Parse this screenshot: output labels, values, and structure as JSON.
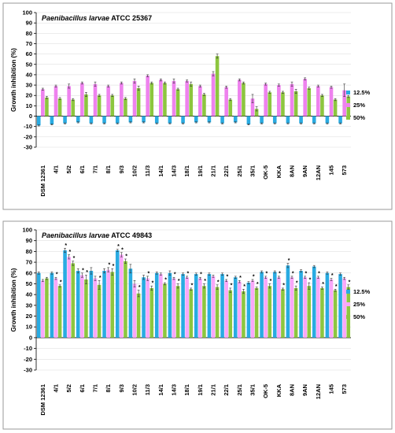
{
  "chart_data": [
    {
      "type": "bar",
      "title_species": "Paenibacillus larvae",
      "title_strain": "ATCC 25367",
      "ylabel": "Growth inhibition (%)",
      "xlabel": "",
      "ylim": [
        -30,
        100
      ],
      "yticks": [
        -30,
        -20,
        -10,
        0,
        10,
        20,
        30,
        40,
        50,
        60,
        70,
        80,
        90,
        100
      ],
      "grid": true,
      "legend_position": "right",
      "categories": [
        "DSM 12361",
        "4/1",
        "5/2",
        "6/1",
        "7/1",
        "8/1",
        "9/3",
        "10/2",
        "11/3",
        "14/1",
        "14/3",
        "18/1",
        "19/1",
        "21/1",
        "22/1",
        "25/1",
        "35/1",
        "OK-5",
        "KKA",
        "8AN",
        "9AN",
        "12AN",
        "145",
        "573"
      ],
      "series": [
        {
          "name": "12.5%",
          "color": "#29ABE2",
          "values": [
            -9,
            -8,
            -7,
            -6,
            -7,
            -7,
            -7,
            -6,
            -6,
            -7,
            -7,
            -7,
            -6,
            -6,
            -7,
            -6,
            -8,
            -7,
            -7,
            -7,
            -7,
            -7,
            -7,
            -7
          ],
          "errors": [
            0.5,
            0.5,
            0.5,
            0.5,
            0.5,
            0.5,
            0.5,
            0.5,
            0.5,
            0.5,
            0.5,
            0.5,
            0.5,
            0.5,
            0.5,
            0.5,
            0.5,
            0.5,
            0.5,
            0.5,
            0.5,
            0.5,
            0.5,
            0.5
          ],
          "sig": []
        },
        {
          "name": "25%",
          "color": "#EE82EE",
          "values": [
            26,
            29,
            29,
            32,
            31,
            29,
            32,
            34,
            39,
            35,
            34,
            34,
            29,
            41,
            28,
            35,
            17,
            31,
            30,
            31,
            36,
            29,
            28,
            25
          ],
          "errors": [
            1,
            1,
            2,
            1,
            2,
            1,
            1,
            2,
            1,
            1,
            2,
            1,
            1,
            2,
            1,
            1,
            4,
            1,
            1,
            2,
            1,
            1,
            1,
            6
          ],
          "sig": []
        },
        {
          "name": "50%",
          "color": "#8DC63F",
          "values": [
            18,
            17,
            16,
            21,
            20,
            20,
            17,
            27,
            32,
            32,
            26,
            31,
            21,
            58,
            16,
            32,
            7,
            23,
            23,
            24,
            27,
            20,
            16,
            19
          ],
          "errors": [
            1,
            1,
            1,
            2,
            1,
            1,
            1,
            2,
            1,
            1,
            1,
            2,
            1,
            2,
            1,
            1,
            2,
            1,
            1,
            2,
            1,
            1,
            1,
            1
          ],
          "sig": []
        }
      ]
    },
    {
      "type": "bar",
      "title_species": "Paenibacillus larvae",
      "title_strain": "ATCC 49843",
      "ylabel": "Growth inhibition (%)",
      "xlabel": "",
      "ylim": [
        -30,
        100
      ],
      "yticks": [
        -30,
        -20,
        -10,
        0,
        10,
        20,
        30,
        40,
        50,
        60,
        70,
        80,
        90,
        100
      ],
      "grid": true,
      "legend_position": "right",
      "significance_marker": "*",
      "categories": [
        "DSM 12361",
        "4/1",
        "5/2",
        "6/1",
        "7/1",
        "8/1",
        "9/3",
        "10/2",
        "11/3",
        "14/1",
        "14/3",
        "18/1",
        "19/1",
        "21/1",
        "22/1",
        "25/1",
        "35/1",
        "OK-5",
        "KKA",
        "8AN",
        "9AN",
        "12AN",
        "145",
        "573"
      ],
      "series": [
        {
          "name": "12.5%",
          "color": "#29ABE2",
          "values": [
            60,
            60,
            81,
            62,
            62,
            62,
            81,
            64,
            56,
            60,
            60,
            59,
            59,
            59,
            59,
            56,
            51,
            61,
            61,
            67,
            62,
            66,
            60,
            59
          ],
          "errors": [
            1,
            1,
            2,
            2,
            3,
            2,
            1,
            4,
            2,
            1,
            2,
            1,
            1,
            1,
            1,
            1,
            1,
            1,
            1,
            2,
            1,
            1,
            1,
            1
          ],
          "sig": [
            false,
            false,
            true,
            false,
            false,
            false,
            true,
            false,
            false,
            false,
            false,
            false,
            false,
            false,
            false,
            false,
            false,
            false,
            false,
            true,
            false,
            false,
            false,
            false
          ]
        },
        {
          "name": "25%",
          "color": "#F9A7F9",
          "values": [
            53,
            55,
            75,
            58,
            55,
            63,
            77,
            50,
            55,
            59,
            55,
            56,
            55,
            57,
            53,
            52,
            53,
            56,
            56,
            56,
            56,
            56,
            54,
            55
          ],
          "errors": [
            1,
            1,
            2,
            2,
            2,
            2,
            2,
            3,
            2,
            1,
            1,
            1,
            1,
            1,
            1,
            1,
            1,
            1,
            1,
            1,
            1,
            1,
            1,
            1
          ],
          "sig": [
            false,
            true,
            true,
            true,
            false,
            true,
            true,
            false,
            true,
            false,
            true,
            true,
            true,
            false,
            true,
            true,
            true,
            true,
            true,
            true,
            true,
            true,
            true,
            false
          ]
        },
        {
          "name": "50%",
          "color": "#8DC63F",
          "values": [
            55,
            48,
            69,
            54,
            49,
            61,
            71,
            41,
            46,
            50,
            48,
            45,
            48,
            47,
            44,
            43,
            46,
            48,
            45,
            46,
            48,
            46,
            44,
            47
          ],
          "errors": [
            1,
            1,
            2,
            4,
            4,
            3,
            2,
            3,
            2,
            1,
            2,
            1,
            2,
            2,
            2,
            2,
            1,
            2,
            1,
            2,
            3,
            1,
            1,
            2
          ],
          "sig": [
            false,
            true,
            true,
            true,
            true,
            true,
            true,
            true,
            true,
            true,
            true,
            true,
            true,
            true,
            true,
            true,
            true,
            true,
            true,
            true,
            true,
            true,
            true,
            true
          ]
        }
      ]
    }
  ]
}
